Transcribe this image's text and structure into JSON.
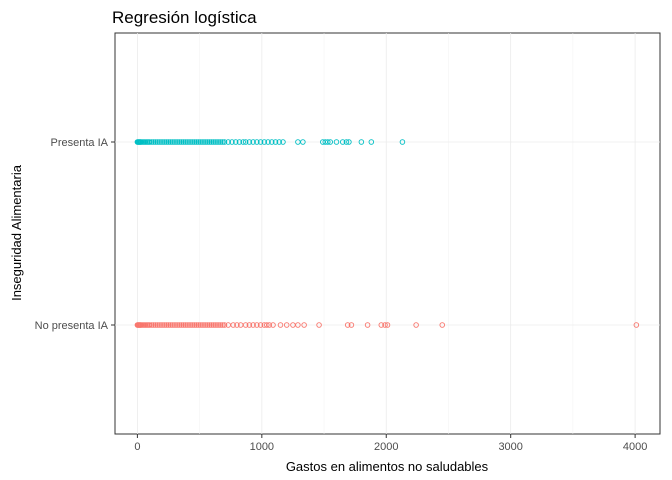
{
  "chart_data": {
    "type": "scatter",
    "title": "Regresión logística",
    "xlabel": "Gastos en alimentos no saludables",
    "ylabel": "Inseguridad Alimentaria",
    "xlim": [
      -180,
      4200
    ],
    "xticks": [
      0,
      1000,
      2000,
      3000,
      4000
    ],
    "xtick_labels": [
      "0",
      "1000",
      "2000",
      "3000",
      "4000"
    ],
    "categories": [
      "No presenta IA",
      "Presenta IA"
    ],
    "grid": true,
    "legend": "none",
    "series": [
      {
        "category": "Presenta IA",
        "color": "#00BFC4",
        "x": [
          0,
          5,
          10,
          15,
          20,
          25,
          30,
          40,
          50,
          60,
          70,
          80,
          90,
          100,
          115,
          130,
          145,
          160,
          175,
          190,
          205,
          220,
          235,
          250,
          265,
          280,
          295,
          310,
          325,
          340,
          355,
          370,
          385,
          400,
          415,
          430,
          445,
          460,
          475,
          490,
          505,
          520,
          535,
          550,
          565,
          580,
          595,
          610,
          625,
          640,
          655,
          670,
          685,
          700,
          730,
          760,
          790,
          820,
          850,
          870,
          900,
          930,
          960,
          990,
          1020,
          1050,
          1080,
          1110,
          1140,
          1170,
          1290,
          1330,
          1490,
          1510,
          1530,
          1550,
          1600,
          1650,
          1680,
          1700,
          1800,
          1880,
          2130
        ]
      },
      {
        "category": "No presenta IA",
        "color": "#F8766D",
        "x": [
          0,
          5,
          10,
          15,
          20,
          25,
          30,
          40,
          50,
          60,
          70,
          80,
          90,
          100,
          115,
          130,
          145,
          160,
          175,
          190,
          205,
          220,
          235,
          250,
          265,
          280,
          295,
          310,
          325,
          340,
          355,
          370,
          385,
          400,
          415,
          430,
          445,
          460,
          475,
          490,
          505,
          520,
          535,
          550,
          565,
          580,
          595,
          610,
          625,
          640,
          655,
          670,
          685,
          700,
          730,
          770,
          800,
          830,
          870,
          900,
          930,
          960,
          990,
          1020,
          1040,
          1060,
          1090,
          1150,
          1200,
          1250,
          1290,
          1340,
          1460,
          1690,
          1720,
          1850,
          1960,
          1990,
          2010,
          2240,
          2450,
          4010
        ]
      }
    ]
  }
}
